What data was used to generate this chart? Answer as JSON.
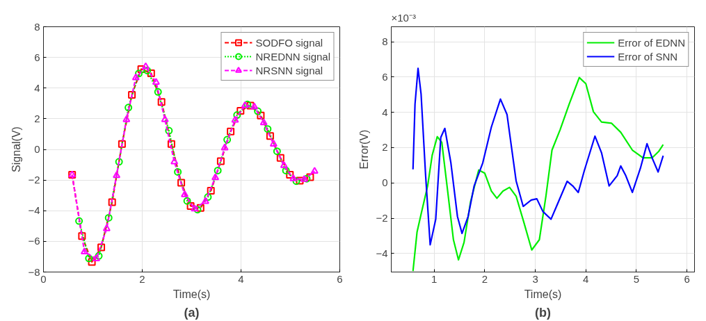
{
  "chart_data": [
    {
      "type": "line",
      "xlabel": "Time(s)",
      "ylabel": "Signal(V)",
      "xlim": [
        0,
        6
      ],
      "ylim": [
        -8,
        8
      ],
      "xticks": [
        0,
        2,
        4,
        6
      ],
      "yticks": [
        -8,
        -6,
        -4,
        -2,
        0,
        2,
        4,
        6,
        8
      ],
      "grid": true,
      "legend": "top right",
      "annotations": [
        "(a)"
      ],
      "series": [
        {
          "name": "SODFO signal",
          "color": "#ff0000",
          "marker": "square",
          "line_style": "dashed",
          "x": [
            0.58,
            0.78,
            0.98,
            1.17,
            1.39,
            1.59,
            1.79,
            1.98,
            2.18,
            2.39,
            2.59,
            2.79,
            2.98,
            3.18,
            3.39,
            3.59,
            3.79,
            3.99,
            4.19,
            4.4,
            4.59,
            4.8,
            4.99,
            5.19,
            5.4
          ],
          "values": [
            -1.66,
            -5.66,
            -7.34,
            -6.39,
            -3.44,
            0.35,
            3.56,
            5.24,
            4.96,
            3.09,
            0.35,
            -2.17,
            -3.69,
            -3.82,
            -2.7,
            -0.77,
            1.17,
            2.52,
            2.86,
            2.21,
            0.87,
            -0.56,
            -1.66,
            -2.04,
            -1.81
          ]
        },
        {
          "name": "NREDNN signal",
          "color": "#00ee00",
          "marker": "circle",
          "line_style": "dotted",
          "x": [
            0.72,
            0.92,
            1.12,
            1.32,
            1.53,
            1.72,
            1.93,
            2.1,
            2.32,
            2.54,
            2.72,
            2.91,
            3.12,
            3.33,
            3.53,
            3.72,
            3.92,
            4.13,
            4.34,
            4.54,
            4.73,
            4.91,
            5.12,
            5.33
          ],
          "values": [
            -4.67,
            -7.11,
            -6.95,
            -4.46,
            -0.81,
            2.73,
            4.95,
            5.15,
            3.75,
            1.22,
            -1.47,
            -3.36,
            -3.93,
            -3.11,
            -1.38,
            0.63,
            2.24,
            2.93,
            2.49,
            1.33,
            -0.12,
            -1.38,
            -2.07,
            -1.91
          ]
        },
        {
          "name": "NRSNN signal",
          "color": "#ff00ff",
          "marker": "triangle",
          "line_style": "dashed",
          "x": [
            0.58,
            0.83,
            1.07,
            1.28,
            1.48,
            1.68,
            1.87,
            2.07,
            2.28,
            2.46,
            2.65,
            2.86,
            3.06,
            3.28,
            3.48,
            3.67,
            3.88,
            4.08,
            4.27,
            4.46,
            4.66,
            4.87,
            5.06,
            5.28,
            5.49
          ],
          "values": [
            -1.66,
            -6.68,
            -7.14,
            -5.17,
            -1.71,
            1.94,
            4.67,
            5.4,
            4.38,
            1.94,
            -0.81,
            -2.95,
            -3.88,
            -3.39,
            -1.84,
            0.1,
            1.91,
            2.86,
            2.77,
            1.74,
            0.35,
            -1.05,
            -1.91,
            -1.96,
            -1.42
          ]
        }
      ]
    },
    {
      "type": "line",
      "xlabel": "Time(s)",
      "ylabel": "Error(V)",
      "xlim": [
        0.15,
        6.15
      ],
      "ylim": [
        -5.05,
        8.85
      ],
      "xticks": [
        1,
        2,
        3,
        4,
        5,
        6
      ],
      "yticks": [
        -4,
        -2,
        0,
        2,
        4,
        6,
        8
      ],
      "grid": true,
      "legend": "top right",
      "annotations": [
        "×10⁻³",
        "(b)"
      ],
      "series": [
        {
          "name": "Error of EDNN",
          "color": "#00ee00",
          "x": [
            0.58,
            0.66,
            0.74,
            0.87,
            0.96,
            1.06,
            1.15,
            1.26,
            1.38,
            1.48,
            1.59,
            1.72,
            1.88,
            2.0,
            2.13,
            2.24,
            2.36,
            2.49,
            2.62,
            2.77,
            2.93,
            3.08,
            3.21,
            3.33,
            3.49,
            3.67,
            3.87,
            4.0,
            4.15,
            4.31,
            4.51,
            4.69,
            4.92,
            5.13,
            5.31,
            5.44,
            5.53
          ],
          "values": [
            -5.0,
            -2.79,
            -1.77,
            -0.17,
            1.57,
            2.62,
            2.3,
            -0.32,
            -3.22,
            -4.36,
            -3.37,
            -1.05,
            0.73,
            0.55,
            -0.46,
            -0.87,
            -0.46,
            -0.25,
            -0.75,
            -2.2,
            -3.8,
            -3.22,
            -0.75,
            1.86,
            3.01,
            4.46,
            5.97,
            5.62,
            4.03,
            3.45,
            3.38,
            2.87,
            1.86,
            1.42,
            1.42,
            1.78,
            2.17
          ]
        },
        {
          "name": "Error of SNN",
          "color": "#0000ff",
          "x": [
            0.58,
            0.62,
            0.68,
            0.74,
            0.83,
            0.92,
            1.03,
            1.13,
            1.21,
            1.33,
            1.46,
            1.55,
            1.67,
            1.79,
            1.96,
            2.13,
            2.31,
            2.44,
            2.62,
            2.76,
            2.92,
            3.03,
            3.15,
            3.31,
            3.44,
            3.63,
            3.74,
            3.85,
            3.97,
            4.18,
            4.31,
            4.46,
            4.62,
            4.69,
            4.79,
            4.92,
            5.08,
            5.21,
            5.31,
            5.43,
            5.53
          ],
          "values": [
            0.77,
            4.46,
            6.49,
            5.04,
            0.41,
            -3.51,
            -2.06,
            2.58,
            3.09,
            1.13,
            -1.91,
            -2.86,
            -1.91,
            -0.17,
            1.13,
            3.16,
            4.75,
            3.88,
            0.12,
            -1.33,
            -0.97,
            -0.9,
            -1.62,
            -2.06,
            -1.19,
            0.09,
            -0.17,
            -0.54,
            0.7,
            2.65,
            1.71,
            -0.17,
            0.41,
            0.96,
            0.41,
            -0.54,
            0.84,
            2.22,
            1.42,
            0.62,
            1.54
          ]
        }
      ]
    }
  ]
}
